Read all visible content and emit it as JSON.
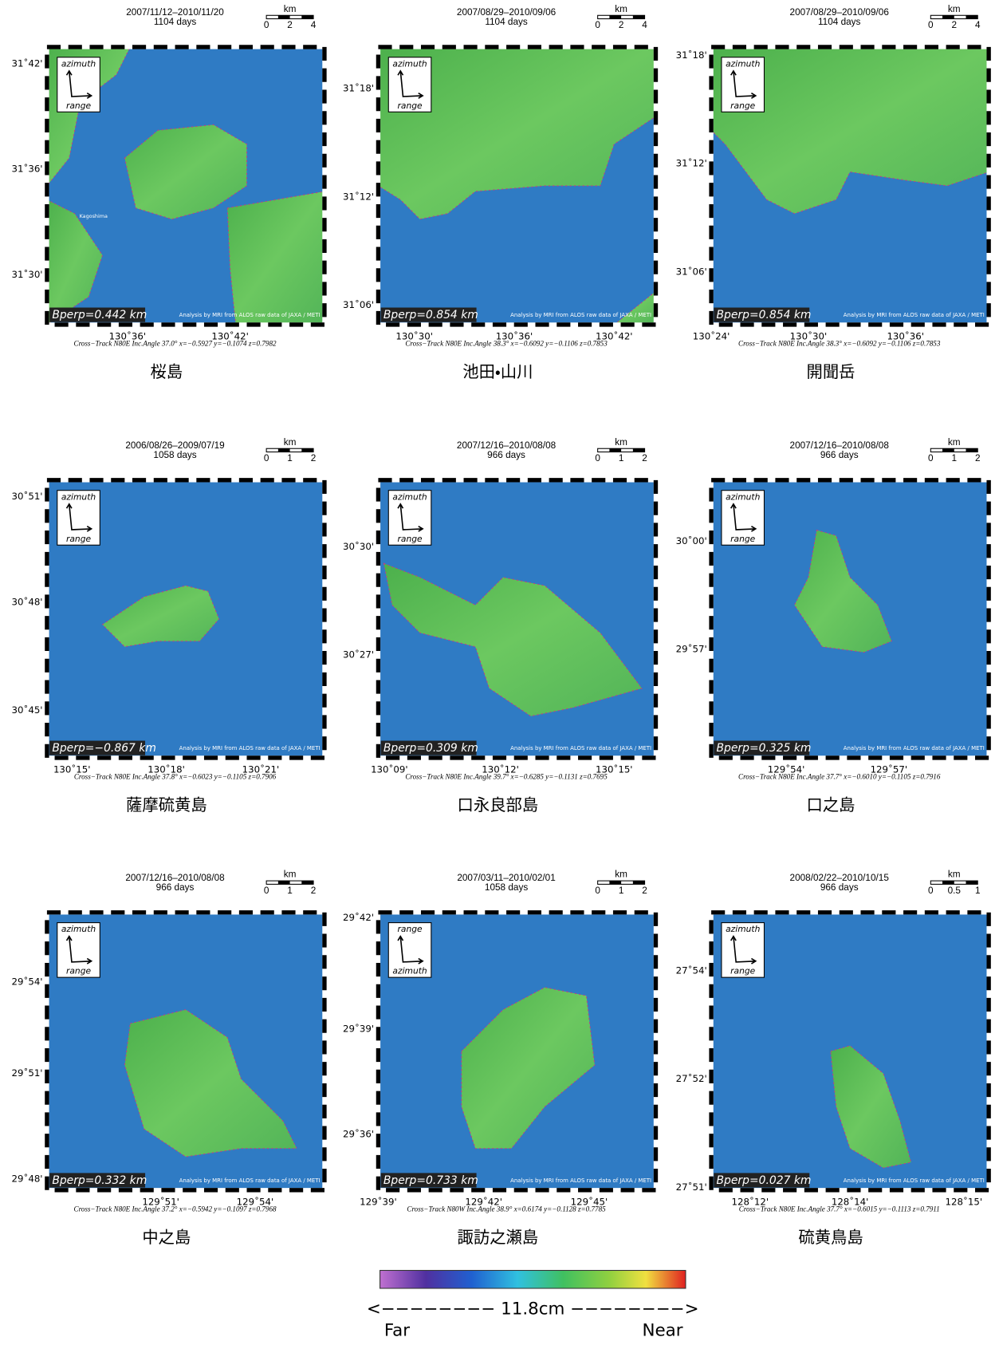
{
  "panels": [
    {
      "date": "2007/11/12–2010/11/20",
      "days": "1104 days",
      "scale_unit": "km",
      "scale_ticks": [
        "0",
        "2",
        "4"
      ],
      "arrow_top": "azimuth",
      "arrow_bottom": "range",
      "bperp": "Bperp=0.442 km",
      "credit": "Analysis by MRI from ALOS raw data of JAXA / METI",
      "place": "Kagoshima",
      "lat_labels": [
        "31˚42'",
        "31˚36'",
        "31˚30'"
      ],
      "lon_labels": [
        "130˚36'",
        "130˚42'"
      ],
      "footer": "Cross−Track N80E  Inc.Angle 37.0°  x=−0.5927  y=−0.1074  z=0.7982",
      "name": "桜島"
    },
    {
      "date": "2007/08/29–2010/09/06",
      "days": "1104 days",
      "scale_unit": "km",
      "scale_ticks": [
        "0",
        "2",
        "4"
      ],
      "arrow_top": "azimuth",
      "arrow_bottom": "range",
      "bperp": "Bperp=0.854 km",
      "credit": "Analysis by MRI from ALOS raw data of JAXA / METI",
      "lat_labels": [
        "31˚18'",
        "31˚12'",
        "31˚06'"
      ],
      "lon_labels": [
        "130˚30'",
        "130˚36'",
        "130˚42'"
      ],
      "footer": "Cross−Track N80E  Inc.Angle 38.3°  x=−0.6092  y=−0.1106  z=0.7853",
      "name": "池田・山川"
    },
    {
      "date": "2007/08/29–2010/09/06",
      "days": "1104 days",
      "scale_unit": "km",
      "scale_ticks": [
        "0",
        "2",
        "4"
      ],
      "arrow_top": "azimuth",
      "arrow_bottom": "range",
      "bperp": "Bperp=0.854 km",
      "credit": "Analysis by MRI from ALOS raw data of JAXA / METI",
      "lat_labels": [
        "31˚18'",
        "31˚12'",
        "31˚06'"
      ],
      "lon_labels": [
        "130˚24'",
        "130˚30'",
        "130˚36'"
      ],
      "footer": "Cross−Track N80E  Inc.Angle 38.3°  x=−0.6092  y=−0.1106  z=0.7853",
      "name": "開聞岳"
    },
    {
      "date": "2006/08/26–2009/07/19",
      "days": "1058 days",
      "scale_unit": "km",
      "scale_ticks": [
        "0",
        "1",
        "2"
      ],
      "arrow_top": "azimuth",
      "arrow_bottom": "range",
      "bperp": "Bperp=−0.867 km",
      "credit": "Analysis by MRI from ALOS raw data of JAXA / METI",
      "lat_labels": [
        "30˚51'",
        "30˚48'",
        "30˚45'"
      ],
      "lon_labels": [
        "130˚15'",
        "130˚18'",
        "130˚21'"
      ],
      "footer": "Cross−Track N80E  Inc.Angle 37.8°  x=−0.6023  y=−0.1105  z=0.7906",
      "name": "薩摩硫黄島"
    },
    {
      "date": "2007/12/16–2010/08/08",
      "days": "966 days",
      "scale_unit": "km",
      "scale_ticks": [
        "0",
        "1",
        "2"
      ],
      "arrow_top": "azimuth",
      "arrow_bottom": "range",
      "bperp": "Bperp=0.309 km",
      "credit": "Analysis by MRI from ALOS raw data of JAXA / METI",
      "lat_labels": [
        "30˚30'",
        "30˚27'"
      ],
      "lon_labels": [
        "130˚09'",
        "130˚12'",
        "130˚15'"
      ],
      "footer": "Cross−Track N80E  Inc.Angle 39.7°  x=−0.6285  y=−0.1131  z=0.7695",
      "name": "口永良部島"
    },
    {
      "date": "2007/12/16–2010/08/08",
      "days": "966 days",
      "scale_unit": "km",
      "scale_ticks": [
        "0",
        "1",
        "2"
      ],
      "arrow_top": "azimuth",
      "arrow_bottom": "range",
      "bperp": "Bperp=0.325 km",
      "credit": "Analysis by MRI from ALOS raw data of JAXA / METI",
      "lat_labels": [
        "30˚00'",
        "29˚57'"
      ],
      "lon_labels": [
        "129˚54'",
        "129˚57'"
      ],
      "footer": "Cross−Track N80E  Inc.Angle 37.7°  x=−0.6010  y=−0.1105  z=0.7916",
      "name": "口之島"
    },
    {
      "date": "2007/12/16–2010/08/08",
      "days": "966 days",
      "scale_unit": "km",
      "scale_ticks": [
        "0",
        "1",
        "2"
      ],
      "arrow_top": "azimuth",
      "arrow_bottom": "range",
      "bperp": "Bperp=0.332 km",
      "credit": "Analysis by MRI from ALOS raw data of JAXA / METI",
      "lat_labels": [
        "29˚54'",
        "29˚51'",
        "29˚48'"
      ],
      "lon_labels": [
        "129˚51'",
        "129˚54'"
      ],
      "footer": "Cross−Track N80E  Inc.Angle 37.2°  x=−0.5942  y=−0.1097  z=0.7968",
      "name": "中之島"
    },
    {
      "date": "2007/03/11–2010/02/01",
      "days": "1058 days",
      "scale_unit": "km",
      "scale_ticks": [
        "0",
        "1",
        "2"
      ],
      "arrow_top": "range",
      "arrow_bottom": "azimuth",
      "bperp": "Bperp=0.733 km",
      "credit": "Analysis by MRI from ALOS raw data of JAXA / METI",
      "lat_labels": [
        "29˚42'",
        "29˚39'",
        "29˚36'"
      ],
      "lon_labels": [
        "129˚39'",
        "129˚42'",
        "129˚45'"
      ],
      "footer": "Cross−Track N80W  Inc.Angle 38.9°  x=0.6174  y=−0.1128  z=0.7785",
      "name": "諏訪之瀬島"
    },
    {
      "date": "2008/02/22–2010/10/15",
      "days": "966 days",
      "scale_unit": "km",
      "scale_ticks": [
        "0",
        "0.5",
        "1"
      ],
      "arrow_top": "azimuth",
      "arrow_bottom": "range",
      "bperp": "Bperp=0.027 km",
      "credit": "Analysis by MRI from ALOS raw data of JAXA / METI",
      "lat_labels": [
        "27˚54'",
        "27˚52'",
        "27˚51'"
      ],
      "lon_labels": [
        "128˚12'",
        "128˚14'",
        "128˚15'"
      ],
      "footer": "Cross−Track N80E  Inc.Angle 37.7°  x=−0.6015  y=−0.1113  z=0.7911",
      "name": "硫黄鳥島"
    }
  ],
  "colorbar": {
    "label": "<−−−−−−−− 11.8cm −−−−−−−−>",
    "far": "Far",
    "near": "Near"
  }
}
